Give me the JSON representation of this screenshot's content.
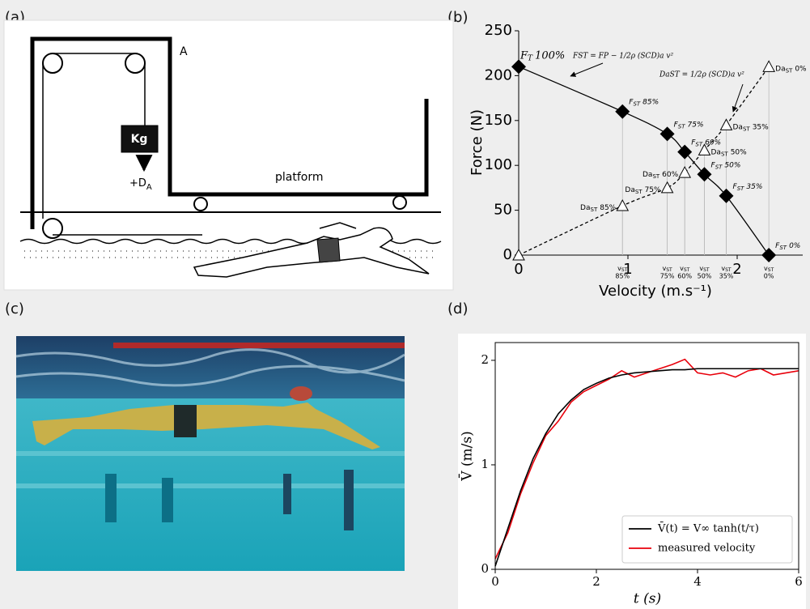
{
  "panels": {
    "a": "(a)",
    "b": "(b)",
    "c": "(c)",
    "d": "(d)"
  },
  "diagram_a": {
    "label_A": "A",
    "label_kg": "Kg",
    "label_d": "+D",
    "label_d_sub": "A",
    "label_platform": "platform"
  },
  "chart_data": [
    {
      "type": "line",
      "xlabel": "Velocity (m.s⁻¹)",
      "ylabel": "Force (N)",
      "xlim": [
        0,
        2.6
      ],
      "ylim": [
        0,
        250
      ],
      "xticks": [
        0,
        1,
        2
      ],
      "yticks": [
        0,
        50,
        100,
        150,
        200,
        250
      ],
      "annotations": [
        "FST = FP − 1/2ρ (SCD)a v²",
        "DaST = 1/2ρ (SCD)a v²"
      ],
      "v_axis_base": "v",
      "v_axis_sub": "ST",
      "v_axis_labels": [
        "85%",
        "75%",
        "60%",
        "50%",
        "35%",
        "0%"
      ],
      "series": [
        {
          "color": "#000000",
          "marker": "diamond",
          "linestyle": "solid",
          "x": [
            0,
            0.95,
            1.36,
            1.52,
            1.7,
            1.9,
            2.29
          ],
          "values": [
            210,
            160,
            135,
            115,
            90,
            66,
            0
          ],
          "point_labels": [
            {
              "base": "F",
              "sub": "T",
              "rest": "100%"
            },
            {
              "base": "F",
              "sub": "ST",
              "rest": "85%"
            },
            {
              "base": "F",
              "sub": "ST",
              "rest": "75%"
            },
            {
              "base": "F",
              "sub": "ST",
              "rest": "60%"
            },
            {
              "base": "F",
              "sub": "ST",
              "rest": "50%"
            },
            {
              "base": "F",
              "sub": "ST",
              "rest": "35%"
            },
            {
              "base": "F",
              "sub": "ST",
              "rest": "0%"
            }
          ]
        },
        {
          "color": "#000000",
          "marker": "triangle",
          "linestyle": "dashed",
          "x": [
            0,
            0.95,
            1.36,
            1.52,
            1.7,
            1.9,
            2.29
          ],
          "values": [
            0,
            55,
            75,
            92,
            117,
            145,
            210
          ],
          "point_labels": [
            null,
            {
              "base": "Da",
              "sub": "ST",
              "rest": "85%"
            },
            {
              "base": "Da",
              "sub": "ST",
              "rest": "75%"
            },
            {
              "base": "Da",
              "sub": "ST",
              "rest": "60%"
            },
            {
              "base": "Da",
              "sub": "ST",
              "rest": "50%"
            },
            {
              "base": "Da",
              "sub": "ST",
              "rest": "35%"
            },
            {
              "base": "Da",
              "sub": "ST",
              "rest": "0%"
            }
          ]
        }
      ]
    },
    {
      "type": "line",
      "xlabel": "t (s)",
      "ylabel": "V̄ (m/s)",
      "xlim": [
        0,
        6
      ],
      "ylim": [
        0,
        2.17
      ],
      "xticks": [
        0,
        2,
        4,
        6
      ],
      "yticks": [
        0,
        1,
        2
      ],
      "legend": "lower right",
      "x": [
        0,
        0.25,
        0.5,
        0.75,
        1,
        1.25,
        1.5,
        1.75,
        2,
        2.25,
        2.5,
        2.75,
        3,
        3.25,
        3.5,
        3.75,
        4,
        4.25,
        4.5,
        4.75,
        5,
        5.25,
        5.5,
        5.75,
        6
      ],
      "series": [
        {
          "name": "V̄(t) = V∞ tanh(t/τ)",
          "color": "#000000",
          "values": [
            0.03,
            0.39,
            0.75,
            1.06,
            1.3,
            1.49,
            1.62,
            1.72,
            1.78,
            1.83,
            1.86,
            1.88,
            1.89,
            1.9,
            1.91,
            1.91,
            1.92,
            1.92,
            1.92,
            1.92,
            1.92,
            1.92,
            1.92,
            1.92,
            1.92
          ]
        },
        {
          "name": "measured velocity",
          "color": "#e8000b",
          "values": [
            0.1,
            0.35,
            0.72,
            1.02,
            1.28,
            1.42,
            1.6,
            1.7,
            1.76,
            1.82,
            1.9,
            1.84,
            1.88,
            1.92,
            1.96,
            2.01,
            1.88,
            1.86,
            1.88,
            1.84,
            1.9,
            1.92,
            1.86,
            1.88,
            1.9
          ]
        }
      ]
    }
  ]
}
